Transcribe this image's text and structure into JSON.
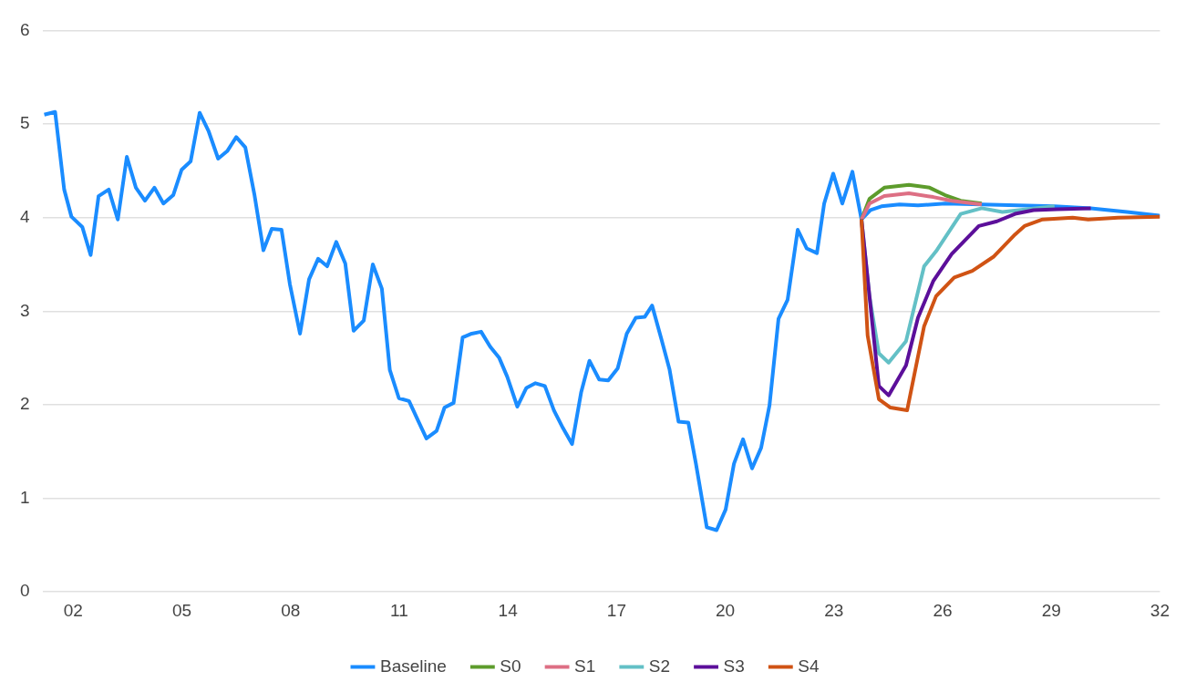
{
  "chart_data": {
    "type": "line",
    "xlim": [
      2001.15,
      2032
    ],
    "ylim": [
      0,
      6
    ],
    "yticks": [
      0,
      1,
      2,
      3,
      4,
      5,
      6
    ],
    "xticks": [
      {
        "value": 2002,
        "label": "02"
      },
      {
        "value": 2005,
        "label": "05"
      },
      {
        "value": 2008,
        "label": "08"
      },
      {
        "value": 2011,
        "label": "11"
      },
      {
        "value": 2014,
        "label": "14"
      },
      {
        "value": 2017,
        "label": "17"
      },
      {
        "value": 2020,
        "label": "20"
      },
      {
        "value": 2023,
        "label": "23"
      },
      {
        "value": 2026,
        "label": "26"
      },
      {
        "value": 2029,
        "label": "29"
      },
      {
        "value": 2032,
        "label": "32"
      }
    ],
    "grid": "y",
    "legend": "bottom",
    "series": [
      {
        "name": "Baseline",
        "color": "#1a8cff",
        "x": [
          2001.2,
          2001.5,
          2001.75,
          2001.95,
          2002.25,
          2002.48,
          2002.7,
          2002.98,
          2003.23,
          2003.48,
          2003.73,
          2003.98,
          2004.24,
          2004.49,
          2004.76,
          2004.99,
          2005.24,
          2005.49,
          2005.74,
          2006.0,
          2006.25,
          2006.5,
          2006.75,
          2007.0,
          2007.25,
          2007.48,
          2007.75,
          2007.98,
          2008.26,
          2008.51,
          2008.76,
          2009.01,
          2009.26,
          2009.51,
          2009.74,
          2010.02,
          2010.27,
          2010.52,
          2010.74,
          2010.99,
          2011.27,
          2011.52,
          2011.75,
          2012.03,
          2012.25,
          2012.5,
          2012.75,
          2013.0,
          2013.26,
          2013.51,
          2013.76,
          2013.98,
          2014.26,
          2014.51,
          2014.76,
          2015.02,
          2015.27,
          2015.52,
          2015.77,
          2016.02,
          2016.25,
          2016.52,
          2016.77,
          2017.03,
          2017.28,
          2017.53,
          2017.78,
          2017.98,
          2018.23,
          2018.46,
          2018.71,
          2018.98,
          2019.19,
          2019.49,
          2019.76,
          2020.01,
          2020.24,
          2020.49,
          2020.74,
          2020.99,
          2021.22,
          2021.47,
          2021.72,
          2022.0,
          2022.25,
          2022.53,
          2022.73,
          2022.98,
          2023.23,
          2023.51,
          2023.76,
          2024.01,
          2024.31,
          2024.81,
          2025.32,
          2026.07,
          2027.08,
          2028.08,
          2029.09,
          2030.09,
          2031.09,
          2032.0
        ],
        "values": [
          5.1,
          5.13,
          4.3,
          4.01,
          3.9,
          3.6,
          4.23,
          4.3,
          3.98,
          4.65,
          4.32,
          4.18,
          4.32,
          4.15,
          4.24,
          4.51,
          4.6,
          5.12,
          4.92,
          4.63,
          4.71,
          4.86,
          4.75,
          4.25,
          3.65,
          3.88,
          3.87,
          3.29,
          2.76,
          3.34,
          3.56,
          3.48,
          3.74,
          3.51,
          2.79,
          2.9,
          3.5,
          3.24,
          2.37,
          2.07,
          2.04,
          1.83,
          1.64,
          1.72,
          1.97,
          2.02,
          2.72,
          2.76,
          2.78,
          2.62,
          2.5,
          2.3,
          1.98,
          2.18,
          2.23,
          2.2,
          1.94,
          1.75,
          1.58,
          2.13,
          2.47,
          2.27,
          2.26,
          2.39,
          2.76,
          2.93,
          2.94,
          3.06,
          2.71,
          2.38,
          1.82,
          1.81,
          1.37,
          0.69,
          0.66,
          0.88,
          1.37,
          1.63,
          1.32,
          1.54,
          1.99,
          2.92,
          3.12,
          3.87,
          3.67,
          3.62,
          4.15,
          4.47,
          4.15,
          4.49,
          3.98,
          4.08,
          4.12,
          4.14,
          4.13,
          4.15,
          4.14,
          4.13,
          4.12,
          4.1,
          4.06,
          4.02
        ]
      },
      {
        "name": "S0",
        "color": "#5d9c2c",
        "x": [
          2023.76,
          2023.98,
          2024.39,
          2025.07,
          2025.64,
          2026.07,
          2026.5,
          2027.08
        ],
        "values": [
          3.98,
          4.2,
          4.32,
          4.35,
          4.32,
          4.24,
          4.18,
          4.15
        ]
      },
      {
        "name": "S1",
        "color": "#dd6f84",
        "x": [
          2023.76,
          2023.98,
          2024.39,
          2025.07,
          2025.74,
          2026.25,
          2027.08
        ],
        "values": [
          3.98,
          4.15,
          4.23,
          4.26,
          4.22,
          4.18,
          4.14
        ]
      },
      {
        "name": "S2",
        "color": "#63c0c6",
        "x": [
          2023.76,
          2023.98,
          2024.24,
          2024.51,
          2024.99,
          2025.49,
          2025.82,
          2026.5,
          2027.08,
          2027.65,
          2028.33,
          2029.09
        ],
        "values": [
          3.98,
          3.16,
          2.55,
          2.45,
          2.68,
          3.48,
          3.64,
          4.04,
          4.1,
          4.06,
          4.09,
          4.12
        ]
      },
      {
        "name": "S3",
        "color": "#5c0f9a",
        "x": [
          2023.76,
          2024.24,
          2024.51,
          2024.99,
          2025.32,
          2025.74,
          2026.25,
          2027.0,
          2027.5,
          2028.0,
          2028.51,
          2029.16,
          2030.09
        ],
        "values": [
          3.98,
          2.2,
          2.1,
          2.42,
          2.93,
          3.32,
          3.61,
          3.91,
          3.96,
          4.04,
          4.08,
          4.09,
          4.1
        ]
      },
      {
        "name": "S4",
        "color": "#d05314",
        "x": [
          2023.76,
          2023.93,
          2024.24,
          2024.56,
          2025.02,
          2025.49,
          2025.82,
          2026.32,
          2026.82,
          2027.4,
          2028.0,
          2028.26,
          2028.76,
          2029.59,
          2030.02,
          2030.84,
          2032.0
        ],
        "values": [
          3.98,
          2.74,
          2.06,
          1.97,
          1.94,
          2.84,
          3.16,
          3.36,
          3.43,
          3.58,
          3.82,
          3.91,
          3.98,
          4.0,
          3.98,
          4.0,
          4.01
        ]
      }
    ]
  }
}
